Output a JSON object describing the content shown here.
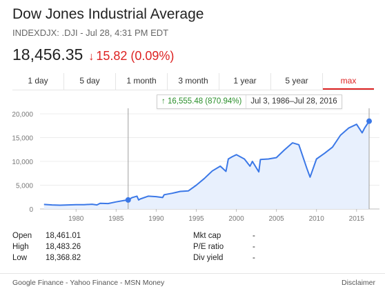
{
  "header": {
    "title": "Dow Jones Industrial Average",
    "subtitle": "INDEXDJX: .DJI - Jul 28, 4:31 PM EDT"
  },
  "quote": {
    "price": "18,456.35",
    "change": "15.82 (0.09%)",
    "change_color": "#dd2222",
    "change_icon": "down-arrow-icon"
  },
  "tabs": [
    "1 day",
    "5 day",
    "1 month",
    "3 month",
    "1 year",
    "5 year",
    "max"
  ],
  "active_tab": "max",
  "tooltip": {
    "gain": "16,555.48 (870.94%)",
    "gain_icon": "up-arrow-icon",
    "range": "Jul 3, 1986–Jul 28, 2016"
  },
  "stats": {
    "open_label": "Open",
    "open": "18,461.01",
    "high_label": "High",
    "high": "18,483.26",
    "low_label": "Low",
    "low": "18,368.82",
    "mktcap_label": "Mkt cap",
    "mktcap": "-",
    "pe_label": "P/E ratio",
    "pe": "-",
    "divyield_label": "Div yield",
    "divyield": "-"
  },
  "footer": {
    "sources": "Google Finance - Yahoo Finance - MSN Money",
    "disclaimer": "Disclaimer"
  },
  "chart_data": {
    "type": "area",
    "x_ticks": [
      "1980",
      "1985",
      "1990",
      "1995",
      "2000",
      "2005",
      "2010",
      "2015"
    ],
    "x_tick_values": [
      1980,
      1985,
      1990,
      1995,
      2000,
      2005,
      2010,
      2015
    ],
    "y_ticks": [
      "0",
      "5,000",
      "10,000",
      "15,000",
      "20,000"
    ],
    "y_tick_values": [
      0,
      5000,
      10000,
      15000,
      20000
    ],
    "xlim": [
      1975.5,
      2017
    ],
    "ylim": [
      0,
      20000
    ],
    "grid": true,
    "line_color": "#3b78e7",
    "fill_color": "#e8f0fd",
    "selection": {
      "start": 1986.5,
      "end": 2016.57,
      "start_value": 1900,
      "end_value": 18456
    },
    "x": [
      1976,
      1977,
      1978,
      1979,
      1980,
      1981,
      1982,
      1982.6,
      1983,
      1984,
      1985,
      1986,
      1986.5,
      1987,
      1987.6,
      1987.8,
      1988,
      1989,
      1990,
      1990.8,
      1991,
      1992,
      1993,
      1994,
      1995,
      1996,
      1997,
      1998,
      1998.7,
      1999,
      1999.5,
      2000,
      2001,
      2001.7,
      2002,
      2002.8,
      2003,
      2004,
      2005,
      2006,
      2007,
      2007.8,
      2008,
      2008.8,
      2009.2,
      2010,
      2011,
      2012,
      2013,
      2014,
      2015,
      2015.7,
      2016,
      2016.57
    ],
    "y": [
      950,
      850,
      800,
      850,
      900,
      900,
      1000,
      850,
      1200,
      1150,
      1500,
      1800,
      1900,
      2400,
      2700,
      1900,
      2100,
      2700,
      2600,
      2400,
      3000,
      3300,
      3700,
      3800,
      5000,
      6400,
      8000,
      9000,
      7900,
      10500,
      11000,
      11400,
      10500,
      9000,
      10000,
      7800,
      10400,
      10500,
      10800,
      12400,
      13900,
      13500,
      12500,
      8500,
      6700,
      10500,
      11700,
      13000,
      15500,
      17000,
      17800,
      16000,
      17000,
      18456
    ]
  }
}
